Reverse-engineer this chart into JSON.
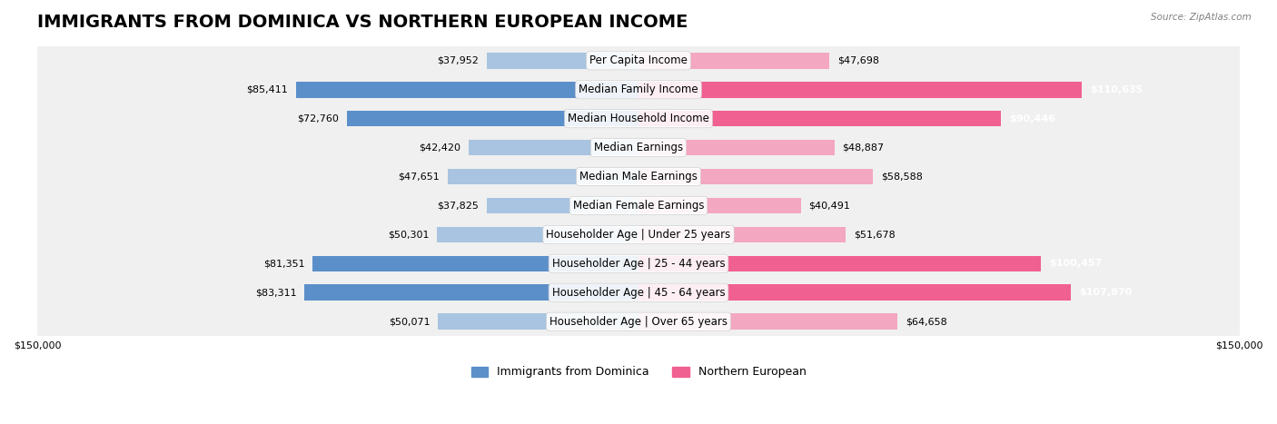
{
  "title": "IMMIGRANTS FROM DOMINICA VS NORTHERN EUROPEAN INCOME",
  "source": "Source: ZipAtlas.com",
  "categories": [
    "Per Capita Income",
    "Median Family Income",
    "Median Household Income",
    "Median Earnings",
    "Median Male Earnings",
    "Median Female Earnings",
    "Householder Age | Under 25 years",
    "Householder Age | 25 - 44 years",
    "Householder Age | 45 - 64 years",
    "Householder Age | Over 65 years"
  ],
  "dominica_values": [
    37952,
    85411,
    72760,
    42420,
    47651,
    37825,
    50301,
    81351,
    83311,
    50071
  ],
  "northern_values": [
    47698,
    110635,
    90446,
    48887,
    58588,
    40491,
    51678,
    100457,
    107870,
    64658
  ],
  "dominica_color_light": "#a8c4e0",
  "dominica_color_dark": "#5b8fc9",
  "northern_color_light": "#f4a7c0",
  "northern_color_dark": "#f06090",
  "axis_max": 150000,
  "background_row_color": "#f0f0f0",
  "bar_height": 0.55,
  "title_fontsize": 14,
  "label_fontsize": 8.5,
  "value_fontsize": 8,
  "legend_fontsize": 9
}
